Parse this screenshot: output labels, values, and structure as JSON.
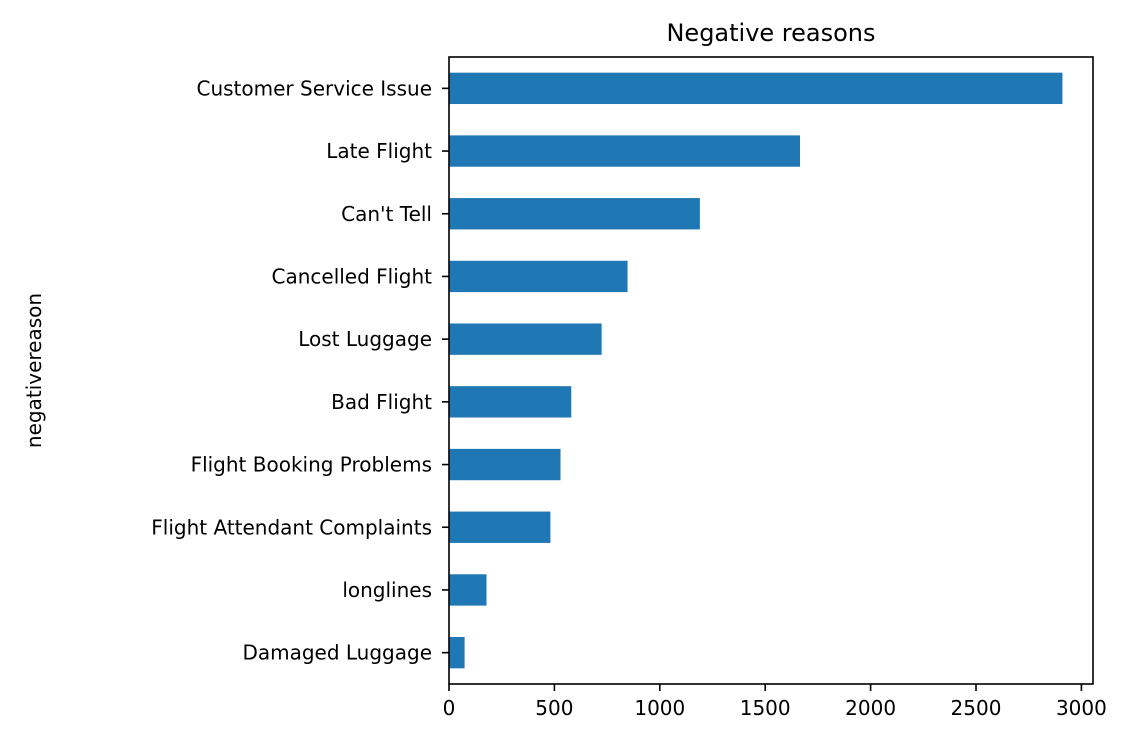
{
  "chart_data": {
    "type": "bar",
    "orientation": "horizontal",
    "title": "Negative reasons",
    "xlabel": "",
    "ylabel": "negativereason",
    "categories": [
      "Customer Service Issue",
      "Late Flight",
      "Can't Tell",
      "Cancelled Flight",
      "Lost Luggage",
      "Bad Flight",
      "Flight Booking Problems",
      "Flight Attendant Complaints",
      "longlines",
      "Damaged Luggage"
    ],
    "values": [
      2910,
      1665,
      1190,
      847,
      724,
      580,
      529,
      481,
      178,
      74
    ],
    "xlim": [
      0,
      3055
    ],
    "xticks": [
      0,
      500,
      1000,
      1500,
      2000,
      2500,
      3000
    ],
    "xtick_labels": [
      "0",
      "500",
      "1000",
      "1500",
      "2000",
      "2500",
      "3000"
    ],
    "grid": false,
    "bar_color": "#1f77b4"
  }
}
